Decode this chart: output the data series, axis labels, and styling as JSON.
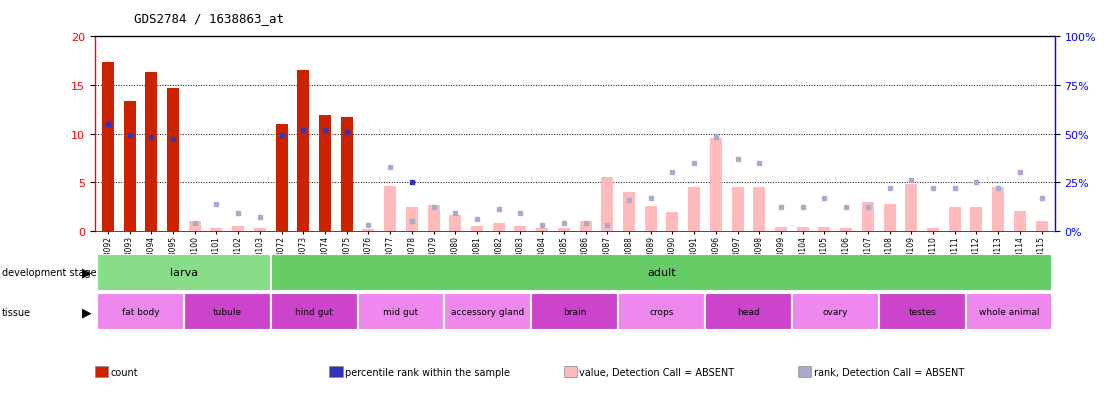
{
  "title": "GDS2784 / 1638863_at",
  "samples": [
    "GSM188092",
    "GSM188093",
    "GSM188094",
    "GSM188095",
    "GSM188100",
    "GSM188101",
    "GSM188102",
    "GSM188103",
    "GSM188072",
    "GSM188073",
    "GSM188074",
    "GSM188075",
    "GSM188076",
    "GSM188077",
    "GSM188078",
    "GSM188079",
    "GSM188080",
    "GSM188081",
    "GSM188082",
    "GSM188083",
    "GSM188084",
    "GSM188085",
    "GSM188086",
    "GSM188087",
    "GSM188088",
    "GSM188089",
    "GSM188090",
    "GSM188091",
    "GSM188096",
    "GSM188097",
    "GSM188098",
    "GSM188099",
    "GSM188104",
    "GSM188105",
    "GSM188106",
    "GSM188107",
    "GSM188108",
    "GSM188109",
    "GSM188110",
    "GSM188111",
    "GSM188112",
    "GSM188113",
    "GSM188114",
    "GSM188115"
  ],
  "count_present": [
    17.4,
    13.3,
    16.3,
    14.7,
    0,
    0,
    0,
    0,
    11.0,
    16.5,
    11.9,
    11.7,
    0,
    0,
    0,
    0,
    0,
    0,
    0,
    0,
    0,
    0,
    0,
    0,
    0,
    0,
    0,
    0,
    0,
    0,
    0,
    0,
    0,
    0,
    0,
    0,
    0,
    0,
    0,
    0,
    0,
    0,
    0,
    0
  ],
  "rank_present_pct": [
    55,
    49,
    48,
    47,
    0,
    0,
    0,
    0,
    49,
    52,
    52,
    51,
    0,
    0,
    25,
    0,
    0,
    0,
    0,
    0,
    0,
    0,
    0,
    0,
    0,
    0,
    0,
    0,
    0,
    0,
    0,
    0,
    0,
    0,
    0,
    0,
    0,
    0,
    0,
    0,
    0,
    0,
    0,
    0
  ],
  "count_absent": [
    0,
    0,
    0,
    0,
    1.0,
    0.3,
    0.5,
    0.3,
    0,
    0,
    0,
    0,
    0.2,
    4.6,
    2.4,
    2.7,
    1.6,
    0.5,
    0.8,
    0.5,
    0.3,
    0.3,
    1.0,
    5.5,
    4.0,
    2.6,
    1.9,
    4.5,
    9.5,
    4.5,
    4.5,
    0.4,
    0.4,
    0.4,
    0.3,
    3.0,
    2.8,
    4.8,
    0.3,
    2.5,
    2.5,
    4.5,
    2.0,
    1.0
  ],
  "rank_absent_pct": [
    0,
    0,
    0,
    0,
    4,
    14,
    9,
    7,
    0,
    0,
    0,
    0,
    3,
    33,
    5,
    12,
    9,
    6,
    11,
    9,
    3,
    4,
    4,
    3,
    16,
    17,
    30,
    35,
    48,
    37,
    35,
    12,
    12,
    17,
    12,
    12,
    22,
    26,
    22,
    22,
    25,
    22,
    30,
    17
  ],
  "development_groups": [
    {
      "label": "larva",
      "start": 0,
      "end": 8,
      "color": "#88dd88"
    },
    {
      "label": "adult",
      "start": 8,
      "end": 44,
      "color": "#66cc66"
    }
  ],
  "tissue_groups": [
    {
      "label": "fat body",
      "start": 0,
      "end": 4
    },
    {
      "label": "tubule",
      "start": 4,
      "end": 8
    },
    {
      "label": "hind gut",
      "start": 8,
      "end": 12
    },
    {
      "label": "mid gut",
      "start": 12,
      "end": 16
    },
    {
      "label": "accessory gland",
      "start": 16,
      "end": 20
    },
    {
      "label": "brain",
      "start": 20,
      "end": 24
    },
    {
      "label": "crops",
      "start": 24,
      "end": 28
    },
    {
      "label": "head",
      "start": 28,
      "end": 32
    },
    {
      "label": "ovary",
      "start": 32,
      "end": 36
    },
    {
      "label": "testes",
      "start": 36,
      "end": 40
    },
    {
      "label": "whole animal",
      "start": 40,
      "end": 44
    }
  ],
  "tissue_colors": [
    "#ee88ee",
    "#cc44cc",
    "#cc44cc",
    "#ee88ee",
    "#ee88ee",
    "#cc44cc",
    "#ee88ee",
    "#cc44cc",
    "#ee88ee",
    "#cc44cc",
    "#ee88ee"
  ],
  "ylim_left": [
    0,
    20
  ],
  "ylim_right": [
    0,
    100
  ],
  "yticks_left": [
    0,
    5,
    10,
    15,
    20
  ],
  "yticks_right": [
    0,
    25,
    50,
    75,
    100
  ],
  "bar_width": 0.55,
  "color_red": "#cc2200",
  "color_blue": "#3333bb",
  "color_pink": "#ffbbbb",
  "color_lavender": "#aaaacc",
  "legend_items": [
    {
      "color": "#cc2200",
      "label": "count"
    },
    {
      "color": "#3333bb",
      "label": "percentile rank within the sample"
    },
    {
      "color": "#ffbbbb",
      "label": "value, Detection Call = ABSENT"
    },
    {
      "color": "#aaaacc",
      "label": "rank, Detection Call = ABSENT"
    }
  ]
}
